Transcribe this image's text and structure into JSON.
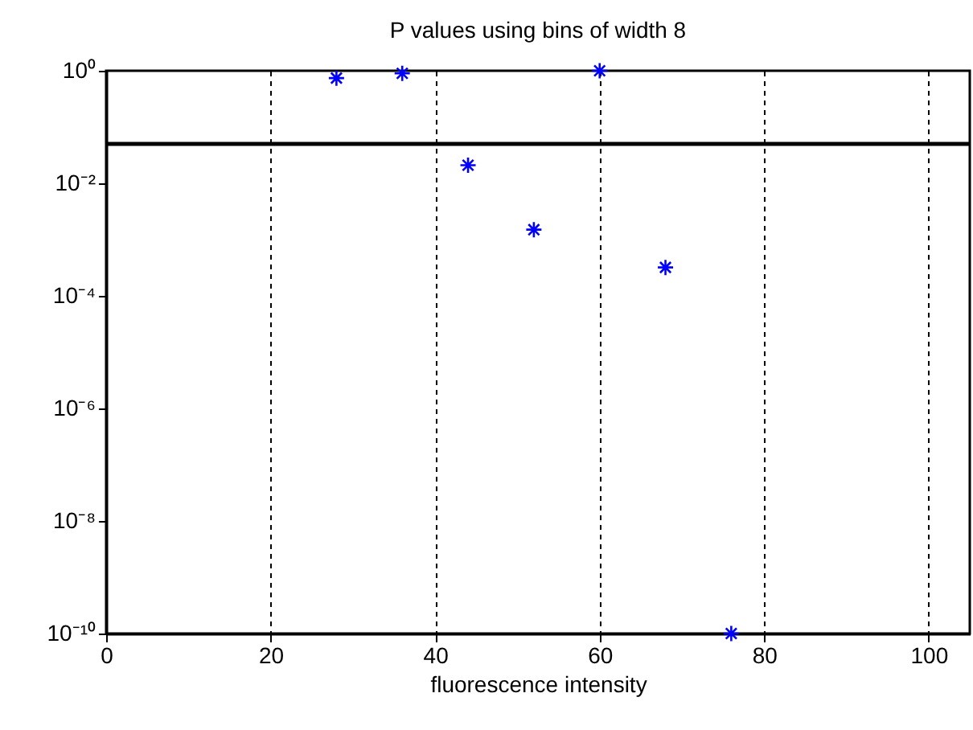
{
  "chart_data": {
    "type": "scatter",
    "title": "P values using bins of width 8",
    "xlabel": "fluorescence intensity",
    "x": [
      28,
      36,
      44,
      52,
      60,
      68,
      76
    ],
    "series": [
      {
        "color": "#0000ff",
        "values": [
          0.74,
          0.9,
          0.021,
          0.0015,
          1,
          0.00032,
          1e-10
        ]
      }
    ],
    "xlim": [
      0,
      105
    ],
    "xticks": [
      0,
      20,
      40,
      60,
      80,
      100
    ],
    "ylim": [
      1e-10,
      1
    ],
    "yticks": [
      {
        "value": 1e-10,
        "label": "10⁻¹⁰"
      },
      {
        "value": 1e-08,
        "label": "10⁻⁸"
      },
      {
        "value": 1e-06,
        "label": "10⁻⁶"
      },
      {
        "value": 0.0001,
        "label": "10⁻⁴"
      },
      {
        "value": 0.01,
        "label": "10⁻²"
      },
      {
        "value": 1,
        "label": "10⁰"
      }
    ],
    "log": "y",
    "grid": "x",
    "marker": "cross",
    "ref_lines": [
      {
        "axis": "y",
        "value": 0.05,
        "color": "#000000"
      }
    ]
  }
}
